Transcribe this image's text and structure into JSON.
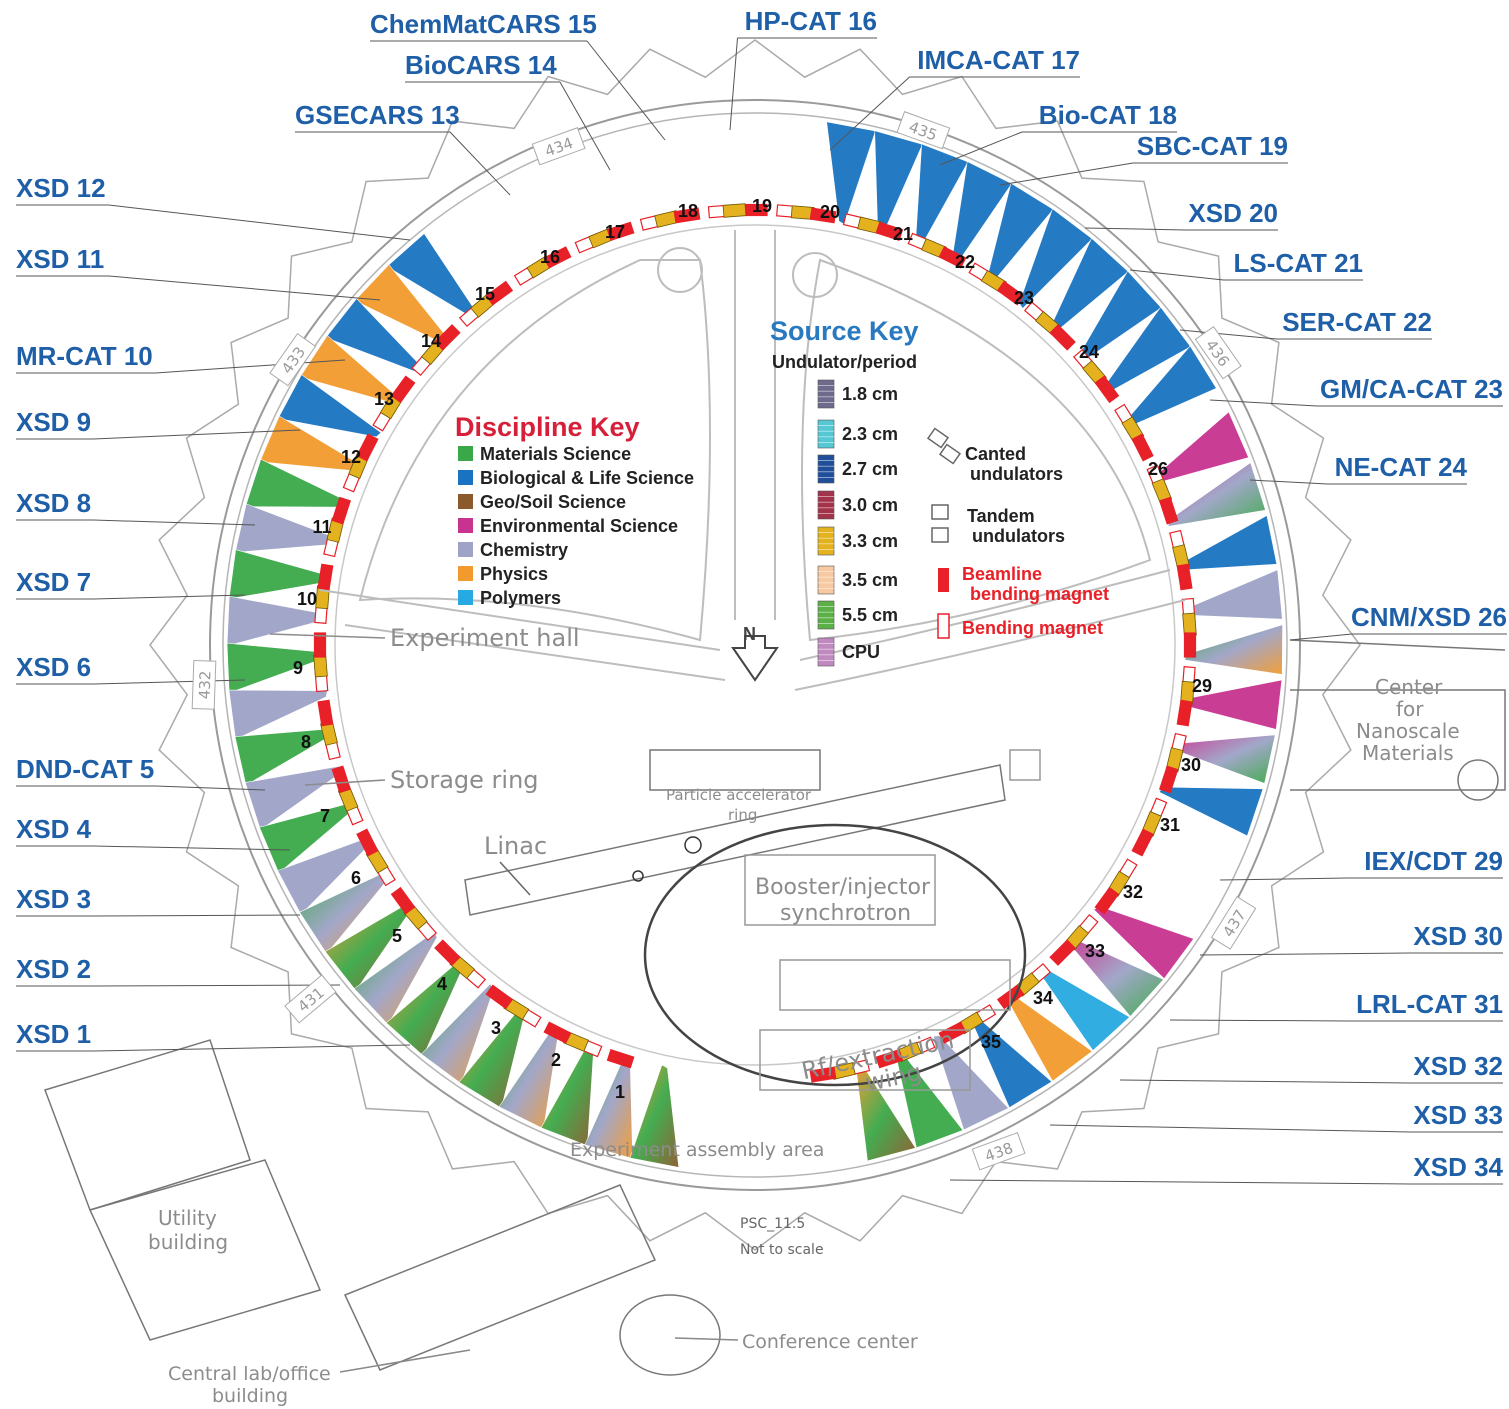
{
  "colors": {
    "label_blue": "#1f5fa8",
    "key_red": "#d6203a",
    "source_key_blue": "#2979c1",
    "magnet_red": "#e82027",
    "materials": "#3aa848",
    "biological": "#1a73c1",
    "geo": "#8b5a2b",
    "environmental": "#c8338f",
    "chemistry": "#9ea3c7",
    "physics": "#f29a2e",
    "polymers": "#27a9e1"
  },
  "sectors_left": [
    "ChemMatCARS 15",
    "BioCARS 14",
    "GSECARS 13",
    "XSD 12",
    "XSD 11",
    "MR-CAT 10",
    "XSD 9",
    "XSD 8",
    "XSD 7",
    "XSD 6",
    "DND-CAT 5",
    "XSD 4",
    "XSD 3",
    "XSD 2",
    "XSD 1"
  ],
  "sectors_right": [
    "HP-CAT 16",
    "IMCA-CAT 17",
    "Bio-CAT 18",
    "SBC-CAT 19",
    "XSD 20",
    "LS-CAT 21",
    "SER-CAT 22",
    "GM/CA-CAT 23",
    "NE-CAT 24",
    "CNM/XSD 26",
    "IEX/CDT 29",
    "XSD 30",
    "LRL-CAT 31",
    "XSD 32",
    "XSD 33",
    "XSD 34"
  ],
  "beamline_numbers": [
    "1",
    "2",
    "3",
    "4",
    "5",
    "6",
    "7",
    "8",
    "9",
    "10",
    "11",
    "12",
    "13",
    "14",
    "15",
    "16",
    "17",
    "18",
    "19",
    "20",
    "21",
    "22",
    "23",
    "24",
    "26",
    "29",
    "30",
    "31",
    "32",
    "33",
    "34",
    "35"
  ],
  "building_numbers": [
    "434",
    "435",
    "433",
    "436",
    "432",
    "437",
    "431",
    "438"
  ],
  "discipline_key": {
    "title": "Discipline Key",
    "items": [
      {
        "label": "Materials Science",
        "color": "#3aa848"
      },
      {
        "label": "Biological & Life Science",
        "color": "#1a73c1"
      },
      {
        "label": "Geo/Soil Science",
        "color": "#8b5a2b"
      },
      {
        "label": "Environmental Science",
        "color": "#c8338f"
      },
      {
        "label": "Chemistry",
        "color": "#9ea3c7"
      },
      {
        "label": "Physics",
        "color": "#f29a2e"
      },
      {
        "label": "Polymers",
        "color": "#27a9e1"
      }
    ]
  },
  "source_key": {
    "title": "Source Key",
    "subtitle": "Undulator/period",
    "periods": [
      {
        "label": "1.8 cm",
        "color": "#6e6a8c"
      },
      {
        "label": "2.3 cm",
        "color": "#56c8d4"
      },
      {
        "label": "2.7 cm",
        "color": "#1f4e9a"
      },
      {
        "label": "3.0 cm",
        "color": "#a3334a"
      },
      {
        "label": "3.3 cm",
        "color": "#e3b21e"
      },
      {
        "label": "3.5 cm",
        "color": "#f7c9a0"
      },
      {
        "label": "5.5 cm",
        "color": "#5cb048"
      },
      {
        "label": "CPU",
        "color": "#c08ac0"
      }
    ],
    "canted": "Canted undulators",
    "tandem": "Tandem undulators",
    "beamline_magnet": "Beamline bending magnet",
    "bending_magnet": "Bending magnet"
  },
  "annotations": {
    "experiment_hall": "Experiment hall",
    "storage_ring": "Storage ring",
    "particle_ring": "Particle accelerator ring",
    "linac": "Linac",
    "booster": "Booster/injector synchrotron",
    "rf_wing": "Rf/extraction wing",
    "assembly_area": "Experiment assembly area",
    "center_nano": "Center for Nanoscale Materials",
    "utility": "Utility building",
    "central_lab": "Central lab/office building",
    "conference": "Conference center",
    "psc_code": "PSC_11.5",
    "not_to_scale": "Not to scale"
  }
}
